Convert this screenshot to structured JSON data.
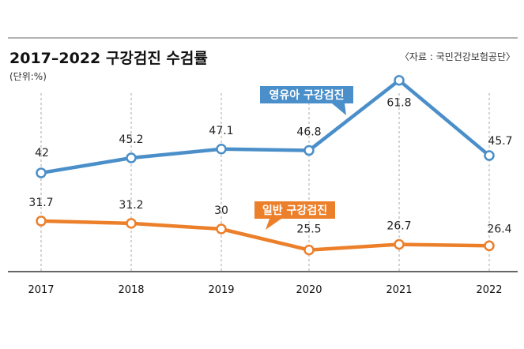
{
  "title": "2017–2022 구강검진 수검률",
  "unit": "(단위:%)",
  "source": "〈자료 : 국민건강보험공단〉",
  "colors": {
    "infant": "#4a8fc9",
    "general": "#ec7f2a",
    "grid": "#aaaaaa",
    "axis": "#333333",
    "topline": "#999999"
  },
  "chart_data": {
    "type": "line",
    "title": "2017–2022 구강검진 수검률",
    "ylabel": "(단위:%)",
    "categories": [
      "2017",
      "2018",
      "2019",
      "2020",
      "2021",
      "2022"
    ],
    "series": [
      {
        "name": "영유아 구강검진",
        "values": [
          42,
          45.2,
          47.1,
          46.8,
          61.8,
          45.7
        ],
        "labels": [
          "42",
          "45.2",
          "47.1",
          "46.8",
          "61.8",
          "45.7"
        ]
      },
      {
        "name": "일반 구강검진",
        "values": [
          31.7,
          31.2,
          30,
          25.5,
          26.7,
          26.4
        ],
        "labels": [
          "31.7",
          "31.2",
          "30",
          "25.5",
          "26.7",
          "26.4"
        ]
      }
    ],
    "grid": "vertical dashed",
    "legend": "callout labels on lines"
  }
}
